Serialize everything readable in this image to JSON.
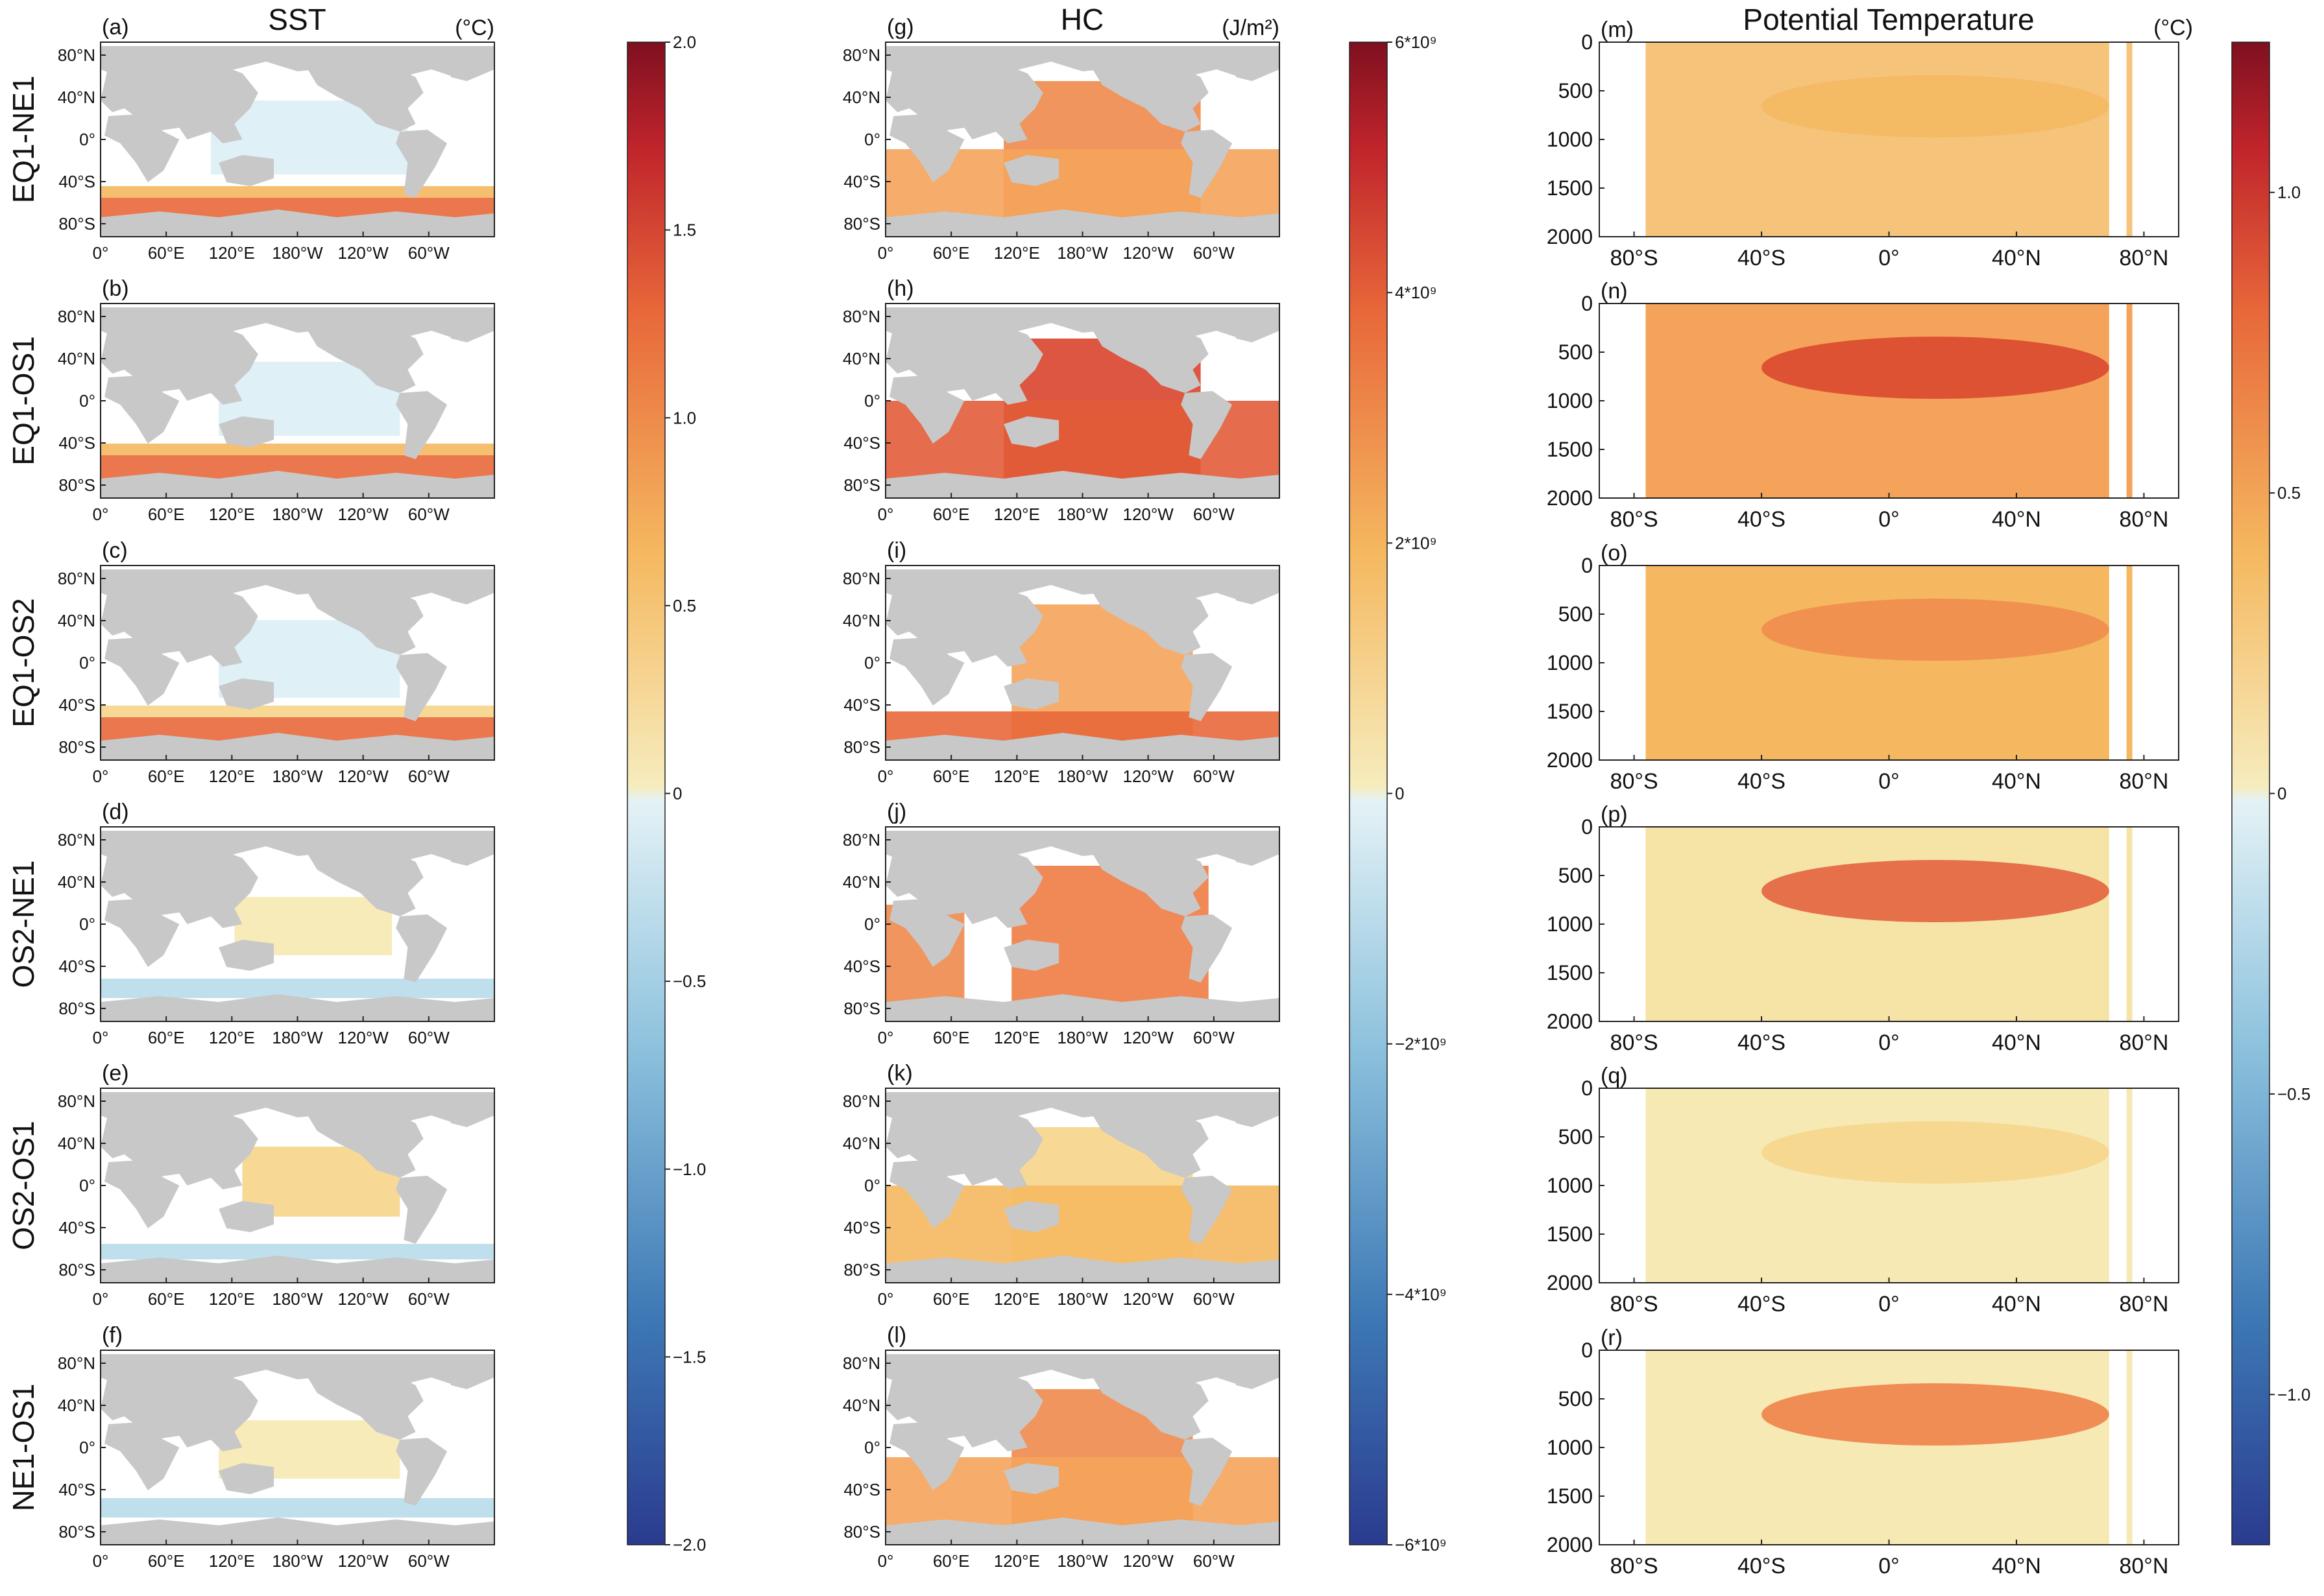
{
  "chart_data": {
    "type": "heatmap",
    "columns": [
      {
        "key": "sst",
        "title": "SST",
        "unit": "(°C)"
      },
      {
        "key": "hc",
        "title": "HC",
        "unit": "(J/m²)"
      },
      {
        "key": "pt",
        "title": "Potential Temperature",
        "unit": "(°C)"
      }
    ],
    "row_labels": [
      "EQ1-NE1",
      "EQ1-OS1",
      "EQ1-OS2",
      "OS2-NE1",
      "OS2-OS1",
      "NE1-OS1"
    ],
    "panel_letters": {
      "sst": [
        "(a)",
        "(b)",
        "(c)",
        "(d)",
        "(e)",
        "(f)"
      ],
      "hc": [
        "(g)",
        "(h)",
        "(i)",
        "(j)",
        "(k)",
        "(l)"
      ],
      "pt": [
        "(m)",
        "(n)",
        "(o)",
        "(p)",
        "(q)",
        "(r)"
      ]
    },
    "map_axes": {
      "lon_ticks": [
        "0°",
        "60°E",
        "120°E",
        "180°W",
        "120°W",
        "60°W"
      ],
      "lat_ticks": [
        "80°N",
        "40°N",
        "0°",
        "40°S",
        "80°S"
      ]
    },
    "section_axes": {
      "lat_ticks": [
        "80°S",
        "40°S",
        "0°",
        "40°N",
        "80°N"
      ],
      "depth_ticks": [
        "0",
        "500",
        "1000",
        "1500",
        "2000"
      ],
      "depth_range": [
        0,
        2000
      ]
    },
    "colorbars": {
      "sst": {
        "range": [
          -2.0,
          2.0
        ],
        "ticks": [
          "2.0",
          "1.5",
          "1.0",
          "0.5",
          "0",
          "−0.5",
          "−1.0",
          "−1.5",
          "−2.0"
        ],
        "tick_values": [
          2,
          1.5,
          1,
          0.5,
          0,
          -0.5,
          -1,
          -1.5,
          -2
        ]
      },
      "hc": {
        "range": [
          -6000000000.0,
          6000000000.0
        ],
        "ticks": [
          "6*10⁹",
          "4*10⁹",
          "2*10⁹",
          "0",
          "−2*10⁹",
          "−4*10⁹",
          "−6*10⁹"
        ],
        "tick_values": [
          6000000000.0,
          4000000000.0,
          2000000000.0,
          0,
          -2000000000.0,
          -4000000000.0,
          -6000000000.0
        ]
      },
      "pt": {
        "range": [
          -1.25,
          1.25
        ],
        "ticks": [
          "1.0",
          "0.5",
          "0",
          "−0.5",
          "−1.0"
        ],
        "tick_values": [
          1,
          0.5,
          0,
          -0.5,
          -1
        ]
      }
    },
    "colormap": [
      "#2b3b8f",
      "#3d78b5",
      "#8cc1dd",
      "#dbeef5",
      "#f6e9b3",
      "#f5b860",
      "#e8683a",
      "#c0242b",
      "#7f1020"
    ]
  }
}
